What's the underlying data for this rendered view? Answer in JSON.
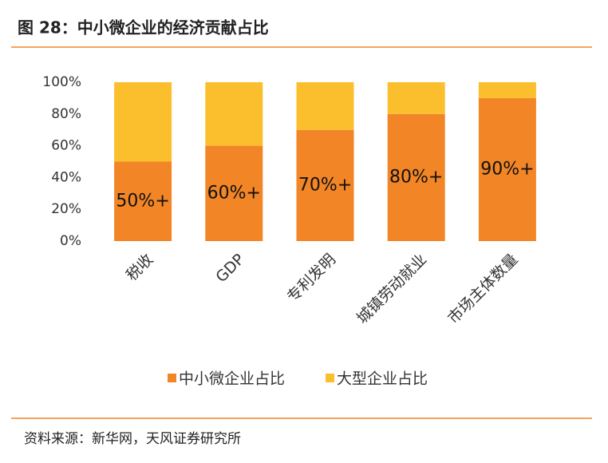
{
  "chart_data": {
    "type": "stacked_bar",
    "title": "图 28：中小微企业的经济贡献占比",
    "source": "资料来源：新华网，天风证券研究所",
    "categories": [
      "税收",
      "GDP",
      "专利发明",
      "城镇劳动就业",
      "市场主体数量"
    ],
    "series": [
      {
        "name": "中小微企业占比",
        "color": "#f28526",
        "values": [
          50,
          60,
          70,
          80,
          90
        ],
        "value_labels": [
          "50%+",
          "60%+",
          "70%+",
          "80%+",
          "90%+"
        ]
      },
      {
        "name": "大型企业占比",
        "color": "#fbbf2e",
        "values": [
          50,
          40,
          30,
          20,
          10
        ]
      }
    ],
    "ylim": [
      0,
      100
    ],
    "yticks": [
      {
        "value": 0,
        "label": "0%"
      },
      {
        "value": 20,
        "label": "20%"
      },
      {
        "value": 40,
        "label": "40%"
      },
      {
        "value": 60,
        "label": "60%"
      },
      {
        "value": 80,
        "label": "80%"
      },
      {
        "value": 100,
        "label": "100%"
      }
    ],
    "grid": false,
    "legend": "bottom"
  }
}
